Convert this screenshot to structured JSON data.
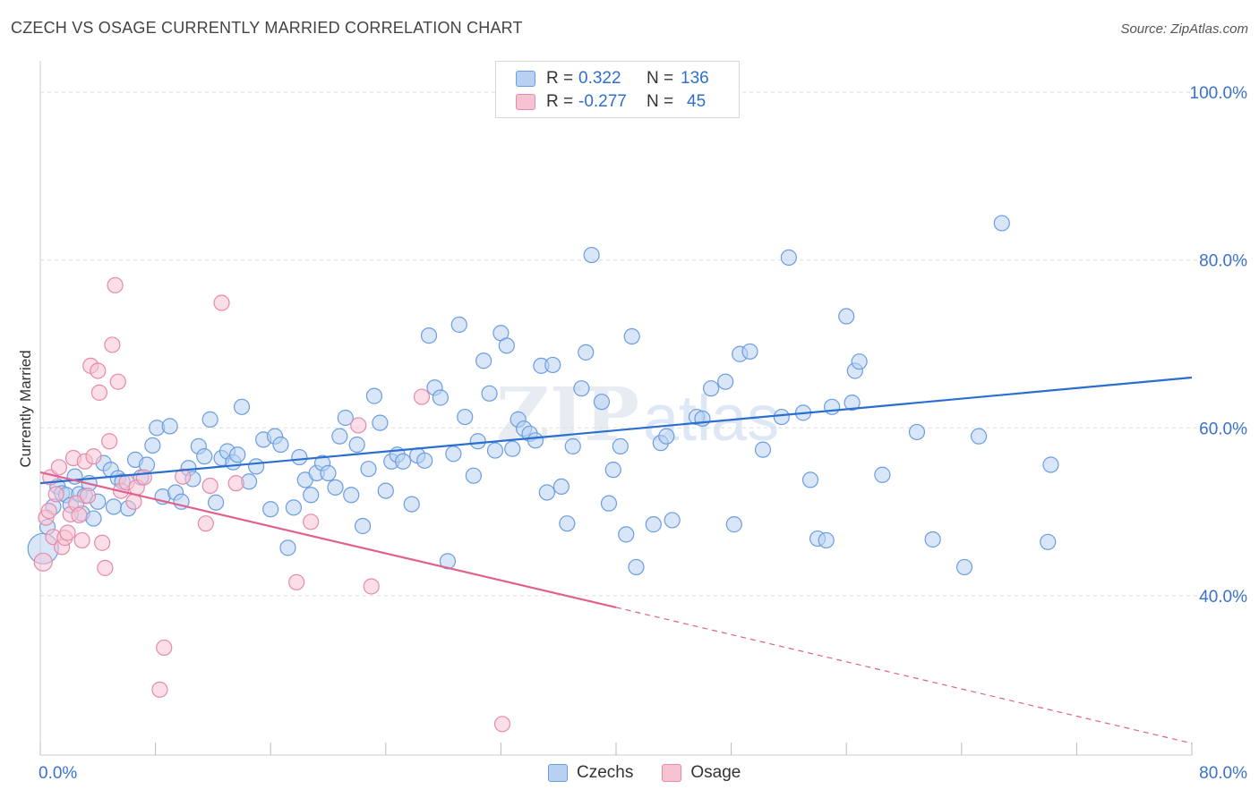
{
  "title": "CZECH VS OSAGE CURRENTLY MARRIED CORRELATION CHART",
  "source": "Source: ZipAtlas.com",
  "watermark": "ZIPatlas",
  "legend": {
    "rows": [
      {
        "r_label": "R =",
        "r_value": "0.322",
        "n_label": "N =",
        "n_value": "136",
        "fill": "#b8d1f3",
        "stroke": "#6b9de0"
      },
      {
        "r_label": "R =",
        "r_value": "-0.277",
        "n_label": "N =",
        "n_value": "45",
        "fill": "#f7c3d3",
        "stroke": "#e68aa8"
      }
    ]
  },
  "bottom_legend": [
    {
      "label": "Czechs",
      "fill": "#b8d1f3",
      "stroke": "#6b9de0"
    },
    {
      "label": "Osage",
      "fill": "#f7c3d3",
      "stroke": "#e68aa8"
    }
  ],
  "chart_data": {
    "type": "scatter",
    "ylabel": "Currently Married",
    "xlim": [
      0,
      80
    ],
    "ylim": [
      21,
      103
    ],
    "x_tick_labels": [
      {
        "value": 0,
        "label": "0.0%"
      },
      {
        "value": 80,
        "label": "80.0%"
      }
    ],
    "y_tick_labels": [
      {
        "value": 40,
        "label": "40.0%"
      },
      {
        "value": 60,
        "label": "60.0%"
      },
      {
        "value": 80,
        "label": "80.0%"
      },
      {
        "value": 100,
        "label": "100.0%"
      }
    ],
    "grid": "horizontal-dashed",
    "colors": {
      "czechs_fill": "#b8d1f3",
      "czechs_stroke": "#6b9de0",
      "czechs_line": "#2a6fcf",
      "osage_fill": "#f7c3d3",
      "osage_stroke": "#e68aa8",
      "osage_line": "#e0608e",
      "tick_label": "#3a72cc"
    },
    "series": [
      {
        "name": "Czechs",
        "trend": {
          "x0": 0,
          "y0": 53.4,
          "x1": 80,
          "y1": 66.0
        },
        "points": [
          [
            0.2,
            45.6
          ],
          [
            0.5,
            48.2
          ],
          [
            0.9,
            50.6
          ],
          [
            1.2,
            53.0
          ],
          [
            1.5,
            52.2
          ],
          [
            1.8,
            52.0
          ],
          [
            2.1,
            50.8
          ],
          [
            2.4,
            54.2
          ],
          [
            2.7,
            52.1
          ],
          [
            2.9,
            49.8
          ],
          [
            3.1,
            51.9
          ],
          [
            3.4,
            53.4
          ],
          [
            3.7,
            49.2
          ],
          [
            4.0,
            51.2
          ],
          [
            4.4,
            55.8
          ],
          [
            4.9,
            55.0
          ],
          [
            5.1,
            50.6
          ],
          [
            5.4,
            54.0
          ],
          [
            5.7,
            53.6
          ],
          [
            6.1,
            50.4
          ],
          [
            6.6,
            56.2
          ],
          [
            7.0,
            54.1
          ],
          [
            7.4,
            55.6
          ],
          [
            7.8,
            57.9
          ],
          [
            8.1,
            60.0
          ],
          [
            8.5,
            51.8
          ],
          [
            9.0,
            60.2
          ],
          [
            9.4,
            52.3
          ],
          [
            9.8,
            51.2
          ],
          [
            10.3,
            55.2
          ],
          [
            10.6,
            53.9
          ],
          [
            11.0,
            57.8
          ],
          [
            11.4,
            56.6
          ],
          [
            11.8,
            61.0
          ],
          [
            12.2,
            51.1
          ],
          [
            12.6,
            56.4
          ],
          [
            13.0,
            57.2
          ],
          [
            13.4,
            55.9
          ],
          [
            13.7,
            56.8
          ],
          [
            14.0,
            62.5
          ],
          [
            14.5,
            53.6
          ],
          [
            15.0,
            55.4
          ],
          [
            15.5,
            58.6
          ],
          [
            16.0,
            50.3
          ],
          [
            16.3,
            59.0
          ],
          [
            16.7,
            58.0
          ],
          [
            17.2,
            45.7
          ],
          [
            17.6,
            50.5
          ],
          [
            18.0,
            56.5
          ],
          [
            18.4,
            53.8
          ],
          [
            18.8,
            52.0
          ],
          [
            19.2,
            54.6
          ],
          [
            19.6,
            55.8
          ],
          [
            20.0,
            54.6
          ],
          [
            20.5,
            52.9
          ],
          [
            20.8,
            59.0
          ],
          [
            21.2,
            61.2
          ],
          [
            21.6,
            52.0
          ],
          [
            22.0,
            58.0
          ],
          [
            22.4,
            48.3
          ],
          [
            22.8,
            55.1
          ],
          [
            23.2,
            63.8
          ],
          [
            23.6,
            60.6
          ],
          [
            24.0,
            52.5
          ],
          [
            24.4,
            56.0
          ],
          [
            24.8,
            56.8
          ],
          [
            25.2,
            56.0
          ],
          [
            25.8,
            50.9
          ],
          [
            26.2,
            56.7
          ],
          [
            26.7,
            56.1
          ],
          [
            27.0,
            71.0
          ],
          [
            27.4,
            64.8
          ],
          [
            27.8,
            63.6
          ],
          [
            28.3,
            44.1
          ],
          [
            28.7,
            56.9
          ],
          [
            29.1,
            72.3
          ],
          [
            29.5,
            61.3
          ],
          [
            30.1,
            54.3
          ],
          [
            30.4,
            58.4
          ],
          [
            30.8,
            68.0
          ],
          [
            31.2,
            64.1
          ],
          [
            31.6,
            57.3
          ],
          [
            32.0,
            71.3
          ],
          [
            32.4,
            69.8
          ],
          [
            32.8,
            57.5
          ],
          [
            33.2,
            61.0
          ],
          [
            33.6,
            59.9
          ],
          [
            34.0,
            59.3
          ],
          [
            34.4,
            58.5
          ],
          [
            34.8,
            67.4
          ],
          [
            35.2,
            52.3
          ],
          [
            35.6,
            67.5
          ],
          [
            36.2,
            53.0
          ],
          [
            36.6,
            48.6
          ],
          [
            37.0,
            57.8
          ],
          [
            37.6,
            64.7
          ],
          [
            37.9,
            69.0
          ],
          [
            38.3,
            80.6
          ],
          [
            39.0,
            63.1
          ],
          [
            39.5,
            51.0
          ],
          [
            39.8,
            55.0
          ],
          [
            40.3,
            57.8
          ],
          [
            40.7,
            47.3
          ],
          [
            41.1,
            70.9
          ],
          [
            41.4,
            43.4
          ],
          [
            42.6,
            48.5
          ],
          [
            43.1,
            58.2
          ],
          [
            43.5,
            59.0
          ],
          [
            43.9,
            49.0
          ],
          [
            45.6,
            61.3
          ],
          [
            46.0,
            61.1
          ],
          [
            46.6,
            64.7
          ],
          [
            47.6,
            65.5
          ],
          [
            48.2,
            48.5
          ],
          [
            48.6,
            68.8
          ],
          [
            49.3,
            69.1
          ],
          [
            50.2,
            57.4
          ],
          [
            51.5,
            61.3
          ],
          [
            52.0,
            80.3
          ],
          [
            53.0,
            61.8
          ],
          [
            53.5,
            53.8
          ],
          [
            54.0,
            46.8
          ],
          [
            54.6,
            46.6
          ],
          [
            55.0,
            62.5
          ],
          [
            56.0,
            73.3
          ],
          [
            56.4,
            63.0
          ],
          [
            56.6,
            66.8
          ],
          [
            56.9,
            67.9
          ],
          [
            58.5,
            54.4
          ],
          [
            60.9,
            59.5
          ],
          [
            62.0,
            46.7
          ],
          [
            64.2,
            43.4
          ],
          [
            65.2,
            59.0
          ],
          [
            66.8,
            84.4
          ],
          [
            70.0,
            46.4
          ],
          [
            70.2,
            55.6
          ]
        ]
      },
      {
        "name": "Osage",
        "trend": {
          "x0": 0,
          "y0": 54.7,
          "x1": 40,
          "y1": 38.6,
          "dash_x1": 80,
          "dash_y1": 22.4
        },
        "points": [
          [
            0.2,
            44.0
          ],
          [
            0.4,
            49.3
          ],
          [
            0.6,
            50.1
          ],
          [
            0.7,
            54.1
          ],
          [
            0.9,
            47.0
          ],
          [
            1.1,
            52.1
          ],
          [
            1.3,
            55.3
          ],
          [
            1.5,
            45.8
          ],
          [
            1.7,
            46.9
          ],
          [
            1.9,
            47.5
          ],
          [
            2.1,
            49.7
          ],
          [
            2.3,
            56.4
          ],
          [
            2.5,
            51.0
          ],
          [
            2.7,
            49.6
          ],
          [
            2.9,
            46.6
          ],
          [
            3.1,
            56.0
          ],
          [
            3.3,
            51.9
          ],
          [
            3.5,
            67.4
          ],
          [
            3.7,
            56.6
          ],
          [
            4.0,
            66.8
          ],
          [
            4.3,
            46.3
          ],
          [
            4.5,
            43.3
          ],
          [
            4.8,
            58.4
          ],
          [
            5.0,
            69.9
          ],
          [
            5.2,
            77.0
          ],
          [
            5.4,
            65.5
          ],
          [
            5.6,
            52.5
          ],
          [
            6.0,
            53.5
          ],
          [
            6.5,
            51.2
          ],
          [
            6.7,
            52.9
          ],
          [
            7.2,
            54.1
          ],
          [
            8.3,
            28.8
          ],
          [
            8.6,
            33.8
          ],
          [
            9.9,
            54.2
          ],
          [
            11.5,
            48.6
          ],
          [
            11.8,
            53.1
          ],
          [
            12.6,
            74.9
          ],
          [
            13.6,
            53.4
          ],
          [
            17.8,
            41.6
          ],
          [
            18.8,
            48.8
          ],
          [
            22.1,
            60.3
          ],
          [
            23.0,
            41.1
          ],
          [
            32.1,
            24.7
          ],
          [
            26.5,
            63.7
          ],
          [
            4.1,
            64.2
          ]
        ]
      }
    ]
  }
}
